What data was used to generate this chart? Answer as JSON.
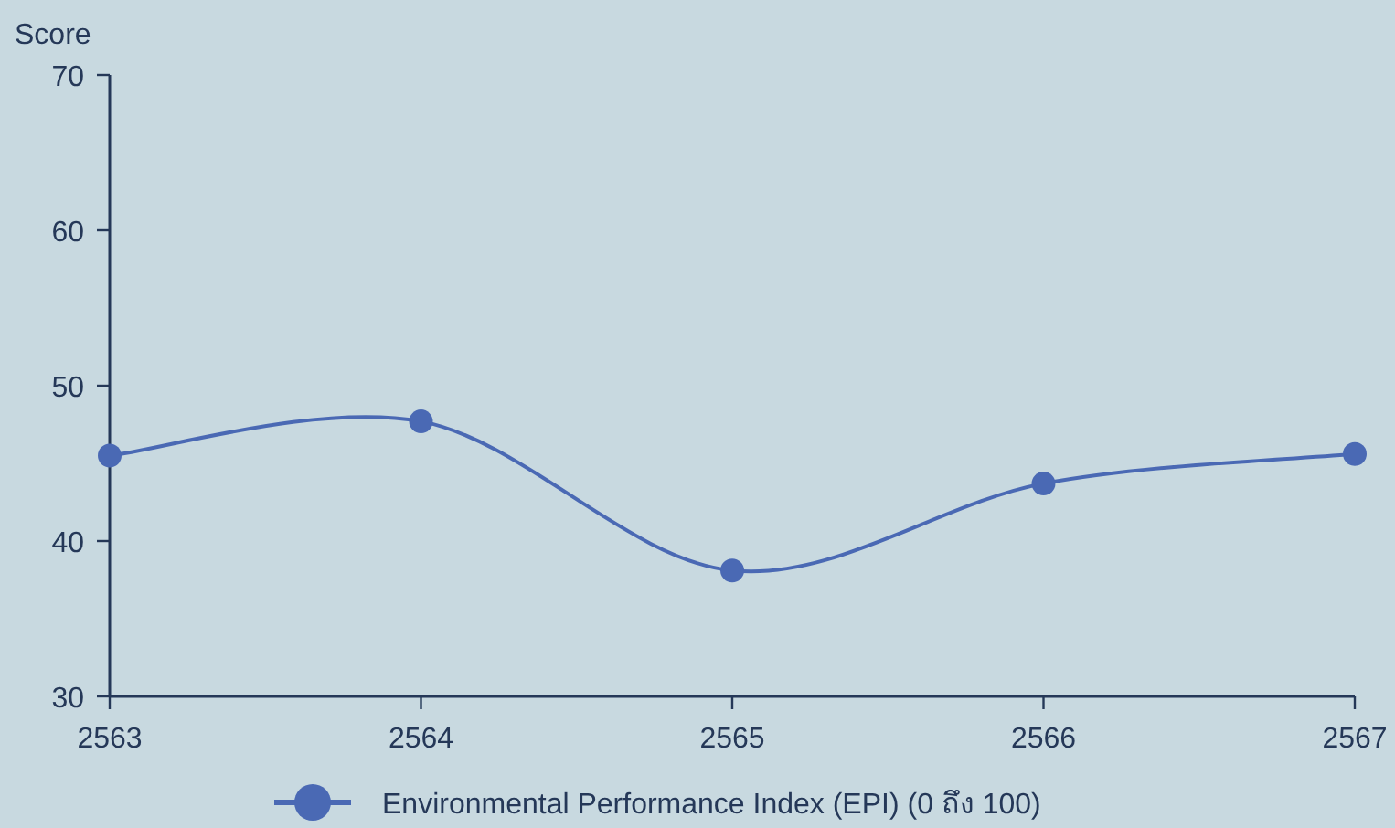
{
  "chart_data": {
    "type": "line",
    "ylabel": "Score",
    "x": [
      2563,
      2564,
      2565,
      2566,
      2567
    ],
    "xlim": [
      2563,
      2567
    ],
    "xticks": [
      2563,
      2564,
      2565,
      2566,
      2567
    ],
    "ylim": [
      30,
      70
    ],
    "yticks": [
      30,
      40,
      50,
      60,
      70
    ],
    "grid": false,
    "legend": "bottom",
    "marker": "circle",
    "line_style": "solid",
    "series": [
      {
        "name": "Environmental Performance Index (EPI) (0 ถึง 100)",
        "color": "#4a69b4",
        "values": [
          45.5,
          47.7,
          38.1,
          43.7,
          45.6
        ]
      }
    ]
  }
}
